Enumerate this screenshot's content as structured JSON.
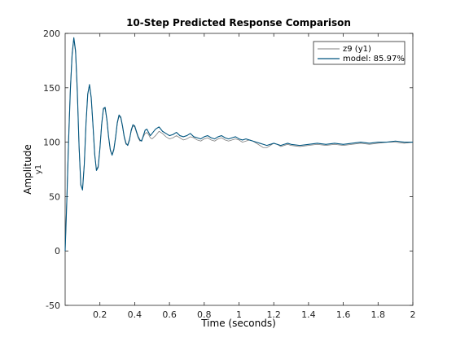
{
  "chart_data": {
    "type": "line",
    "title": "10-Step Predicted Response Comparison",
    "xlabel": "Time (seconds)",
    "ylabel": "Amplitude",
    "ylabel_sub": "y1",
    "xlim": [
      0,
      2
    ],
    "ylim": [
      -50,
      200
    ],
    "xticks": [
      0.2,
      0.4,
      0.6,
      0.8,
      1,
      1.2,
      1.4,
      1.6,
      1.8,
      2
    ],
    "xtick_labels": [
      "0.2",
      "0.4",
      "0.6",
      "0.8",
      "1",
      "1.2",
      "1.4",
      "1.6",
      "1.8",
      "2"
    ],
    "yticks": [
      -50,
      0,
      50,
      100,
      150,
      200
    ],
    "ytick_labels": [
      "-50",
      "0",
      "50",
      "100",
      "150",
      "200"
    ],
    "grid": false,
    "legend_position": "top-right",
    "series": [
      {
        "name": "z9 (y1)",
        "color": "#7f7f7f",
        "x": [
          0,
          0.01,
          0.02,
          0.03,
          0.04,
          0.05,
          0.06,
          0.07,
          0.08,
          0.09,
          0.1,
          0.11,
          0.12,
          0.13,
          0.14,
          0.15,
          0.16,
          0.17,
          0.18,
          0.19,
          0.2,
          0.21,
          0.22,
          0.23,
          0.24,
          0.25,
          0.26,
          0.27,
          0.28,
          0.29,
          0.3,
          0.31,
          0.32,
          0.33,
          0.34,
          0.35,
          0.36,
          0.37,
          0.38,
          0.39,
          0.4,
          0.41,
          0.42,
          0.43,
          0.44,
          0.45,
          0.46,
          0.47,
          0.48,
          0.49,
          0.5,
          0.52,
          0.54,
          0.56,
          0.58,
          0.6,
          0.62,
          0.64,
          0.66,
          0.68,
          0.7,
          0.72,
          0.74,
          0.76,
          0.78,
          0.8,
          0.82,
          0.84,
          0.86,
          0.88,
          0.9,
          0.92,
          0.94,
          0.96,
          0.98,
          1,
          1.02,
          1.04,
          1.06,
          1.08,
          1.1,
          1.12,
          1.14,
          1.16,
          1.18,
          1.2,
          1.22,
          1.24,
          1.26,
          1.28,
          1.3,
          1.35,
          1.4,
          1.45,
          1.5,
          1.55,
          1.6,
          1.65,
          1.7,
          1.75,
          1.8,
          1.85,
          1.9,
          1.95,
          2
        ],
        "y": [
          0,
          50,
          105,
          150,
          182,
          195,
          182,
          145,
          95,
          60,
          57,
          80,
          118,
          145,
          152,
          140,
          115,
          88,
          75,
          78,
          95,
          117,
          130,
          131,
          120,
          104,
          92,
          89,
          94,
          105,
          117,
          124,
          122,
          114,
          104,
          98,
          98,
          103,
          110,
          115,
          114,
          109,
          104,
          101,
          102,
          105,
          108,
          109,
          107,
          104,
          103,
          106,
          110,
          108,
          105,
          103,
          104,
          106,
          104,
          102,
          103,
          105,
          104,
          102,
          101,
          103,
          104,
          102,
          101,
          103,
          104,
          102,
          101,
          102,
          103,
          102,
          100,
          101,
          102,
          101,
          99,
          97,
          95,
          95,
          97,
          99,
          98,
          96,
          97,
          98,
          97,
          96,
          97,
          98,
          97,
          98,
          97,
          98,
          99,
          98,
          99,
          100,
          100,
          99,
          100
        ]
      },
      {
        "name": "model: 85.97%",
        "color": "#00557f",
        "x": [
          0,
          0.01,
          0.02,
          0.03,
          0.04,
          0.05,
          0.06,
          0.07,
          0.08,
          0.09,
          0.1,
          0.11,
          0.12,
          0.13,
          0.14,
          0.15,
          0.16,
          0.17,
          0.18,
          0.19,
          0.2,
          0.21,
          0.22,
          0.23,
          0.24,
          0.25,
          0.26,
          0.27,
          0.28,
          0.29,
          0.3,
          0.31,
          0.32,
          0.33,
          0.34,
          0.35,
          0.36,
          0.37,
          0.38,
          0.39,
          0.4,
          0.41,
          0.42,
          0.43,
          0.44,
          0.45,
          0.46,
          0.47,
          0.48,
          0.49,
          0.5,
          0.52,
          0.54,
          0.56,
          0.58,
          0.6,
          0.62,
          0.64,
          0.66,
          0.68,
          0.7,
          0.72,
          0.74,
          0.76,
          0.78,
          0.8,
          0.82,
          0.84,
          0.86,
          0.88,
          0.9,
          0.92,
          0.94,
          0.96,
          0.98,
          1,
          1.02,
          1.04,
          1.06,
          1.08,
          1.1,
          1.12,
          1.14,
          1.16,
          1.18,
          1.2,
          1.22,
          1.24,
          1.26,
          1.28,
          1.3,
          1.35,
          1.4,
          1.45,
          1.5,
          1.55,
          1.6,
          1.65,
          1.7,
          1.75,
          1.8,
          1.85,
          1.9,
          1.95,
          2
        ],
        "y": [
          0,
          48,
          102,
          148,
          180,
          196,
          184,
          147,
          97,
          61,
          56,
          79,
          117,
          144,
          153,
          141,
          116,
          89,
          74,
          77,
          94,
          116,
          131,
          132,
          121,
          105,
          93,
          88,
          93,
          104,
          118,
          125,
          123,
          115,
          105,
          99,
          97,
          102,
          111,
          116,
          115,
          110,
          105,
          102,
          101,
          106,
          111,
          112,
          109,
          106,
          108,
          112,
          114,
          110,
          108,
          106,
          107,
          109,
          106,
          105,
          106,
          108,
          105,
          104,
          103,
          105,
          106,
          104,
          103,
          105,
          106,
          104,
          103,
          104,
          105,
          103,
          102,
          103,
          102,
          101,
          100,
          99,
          98,
          97,
          98,
          99,
          98,
          97,
          98,
          99,
          98,
          97,
          98,
          99,
          98,
          99,
          98,
          99,
          100,
          99,
          100,
          100,
          101,
          100,
          100
        ]
      }
    ]
  }
}
